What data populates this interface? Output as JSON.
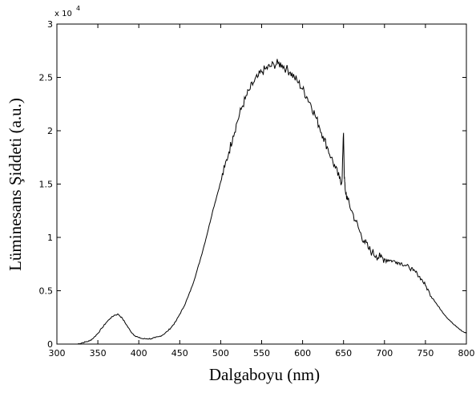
{
  "chart_data": {
    "type": "line",
    "xlabel": "Dalgaboyu (nm)",
    "ylabel": "Lüminesans Şiddeti (a.u.)",
    "exponent_base": "x 10",
    "exponent_power": "4",
    "xlim": [
      300,
      800
    ],
    "ylim": [
      0,
      3
    ],
    "xticks": [
      300,
      350,
      400,
      450,
      500,
      550,
      600,
      650,
      700,
      750,
      800
    ],
    "yticks": [
      0,
      0.5,
      1,
      1.5,
      2,
      2.5,
      3
    ],
    "xtick_labels": [
      "300",
      "350",
      "400",
      "450",
      "500",
      "550",
      "600",
      "650",
      "700",
      "750",
      "800"
    ],
    "ytick_labels": [
      "0",
      "0.5",
      "1",
      "1.5",
      "2",
      "2.5",
      "3"
    ],
    "grid": false,
    "series": [
      {
        "color": "#000000",
        "x": [
          325,
          330,
          335,
          340,
          345,
          350,
          355,
          360,
          365,
          370,
          375,
          380,
          385,
          390,
          395,
          400,
          405,
          410,
          415,
          420,
          425,
          430,
          435,
          440,
          445,
          450,
          455,
          460,
          465,
          470,
          475,
          480,
          485,
          490,
          495,
          500,
          505,
          510,
          515,
          520,
          525,
          530,
          535,
          540,
          545,
          550,
          555,
          560,
          565,
          570,
          575,
          580,
          585,
          590,
          595,
          600,
          605,
          610,
          615,
          620,
          625,
          630,
          635,
          640,
          645,
          648,
          650,
          651,
          652,
          655,
          660,
          665,
          670,
          675,
          680,
          685,
          690,
          695,
          700,
          705,
          710,
          715,
          720,
          725,
          730,
          735,
          740,
          745,
          750,
          755,
          760,
          765,
          770,
          775,
          780,
          785,
          790,
          795,
          800
        ],
        "y": [
          0.0,
          0.01,
          0.02,
          0.03,
          0.06,
          0.1,
          0.15,
          0.2,
          0.24,
          0.27,
          0.28,
          0.24,
          0.18,
          0.12,
          0.08,
          0.06,
          0.05,
          0.05,
          0.05,
          0.06,
          0.07,
          0.09,
          0.12,
          0.16,
          0.21,
          0.28,
          0.35,
          0.44,
          0.54,
          0.66,
          0.79,
          0.93,
          1.08,
          1.24,
          1.38,
          1.52,
          1.66,
          1.8,
          1.95,
          2.08,
          2.2,
          2.3,
          2.38,
          2.45,
          2.5,
          2.55,
          2.58,
          2.6,
          2.62,
          2.63,
          2.62,
          2.58,
          2.55,
          2.5,
          2.45,
          2.39,
          2.32,
          2.25,
          2.15,
          2.05,
          1.95,
          1.85,
          1.75,
          1.65,
          1.55,
          1.52,
          1.98,
          1.55,
          1.45,
          1.35,
          1.25,
          1.15,
          1.05,
          0.97,
          0.9,
          0.86,
          0.83,
          0.81,
          0.8,
          0.79,
          0.78,
          0.77,
          0.76,
          0.74,
          0.72,
          0.69,
          0.66,
          0.61,
          0.55,
          0.48,
          0.42,
          0.36,
          0.31,
          0.26,
          0.22,
          0.18,
          0.15,
          0.12,
          0.1
        ]
      }
    ]
  }
}
